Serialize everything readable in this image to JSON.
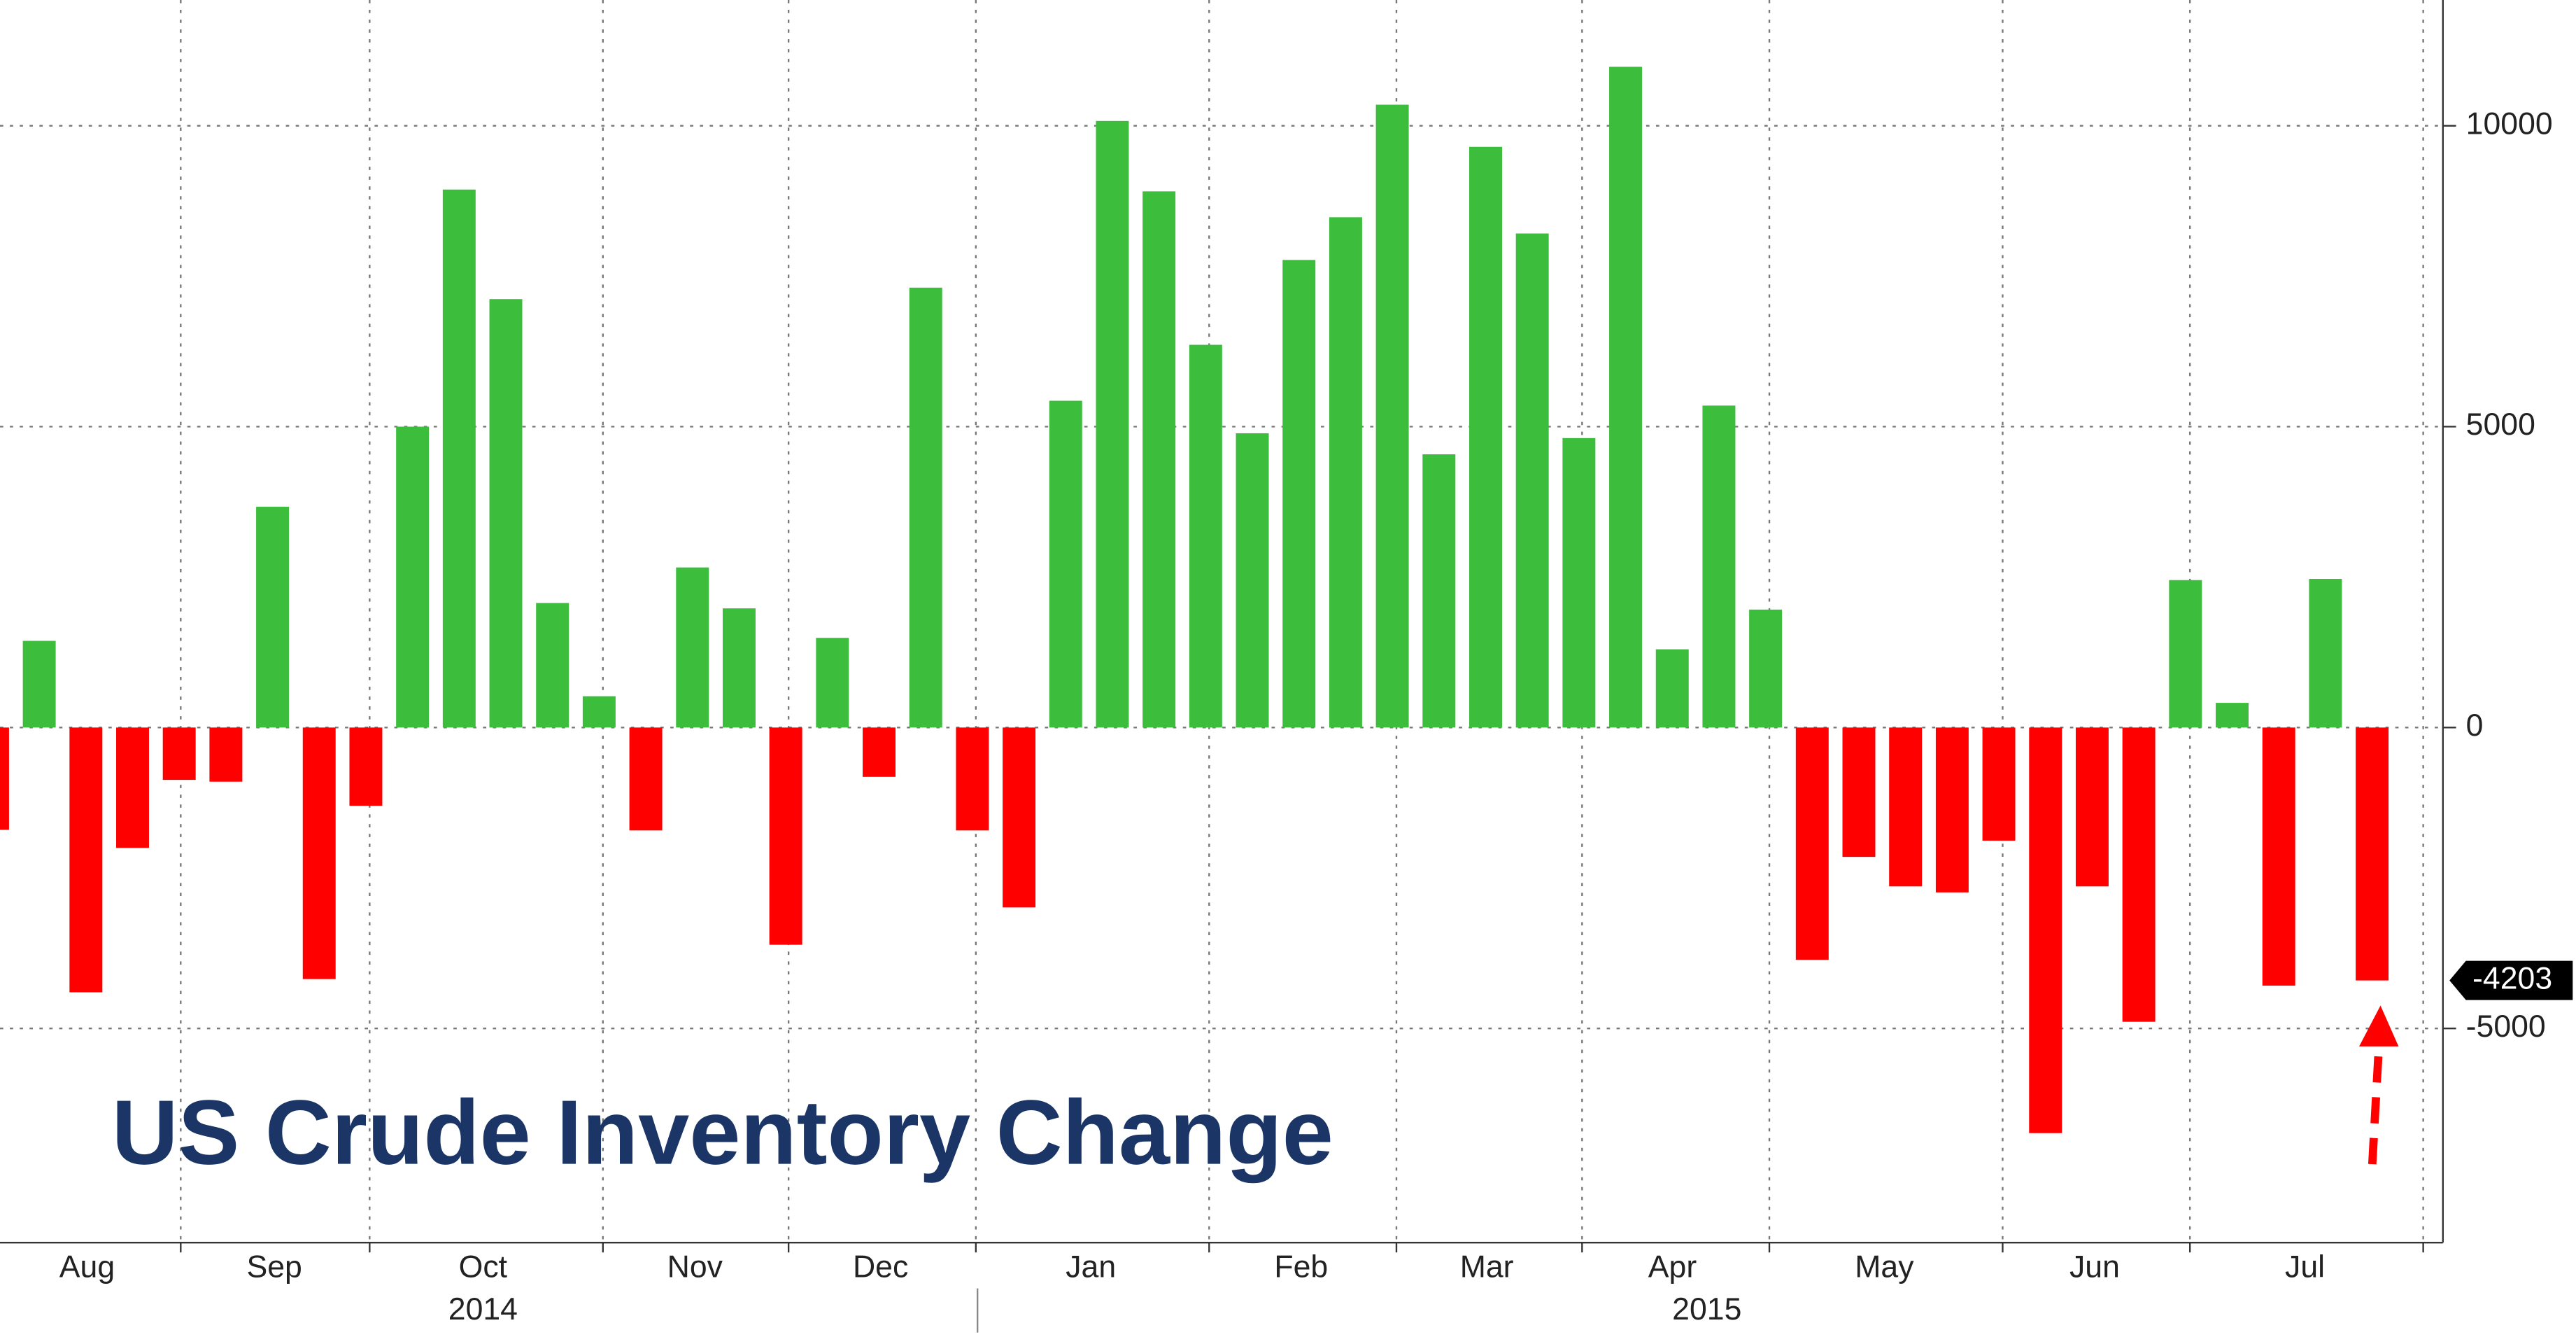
{
  "chart_data": {
    "type": "bar",
    "title": "US Crude Inventory Change",
    "categories": [
      null,
      null,
      null,
      null,
      null,
      null,
      null,
      null,
      null,
      null,
      null,
      null,
      null,
      null,
      null,
      null,
      null,
      null,
      null,
      null,
      null,
      null,
      null,
      null,
      null,
      null,
      null,
      null,
      null,
      null,
      null,
      null,
      null,
      null,
      null,
      null,
      null,
      null,
      null,
      null,
      null,
      null,
      null,
      null,
      null,
      null,
      null,
      null,
      null,
      null,
      null,
      null
    ],
    "values": [
      -1700,
      1440,
      -4400,
      -2000,
      -870,
      -900,
      3670,
      -4180,
      -1300,
      5000,
      8940,
      7120,
      2070,
      520,
      -1710,
      2660,
      1980,
      -3610,
      1490,
      -820,
      7310,
      -1710,
      -2990,
      5430,
      10080,
      8910,
      6360,
      4890,
      7770,
      8480,
      10350,
      4540,
      9650,
      8210,
      4810,
      10980,
      1300,
      5350,
      1960,
      -3860,
      -2150,
      -2640,
      -2740,
      -1880,
      -6740,
      -2640,
      -4890,
      2450,
      410,
      -4290,
      2470,
      -4203
    ],
    "value_labels": {
      "51": "-4203"
    },
    "x_labels": [
      "Aug",
      "Sep",
      "Oct",
      "Nov",
      "Dec",
      "Jan",
      "Feb",
      "Mar",
      "Apr",
      "May",
      "Jun",
      "Jul"
    ],
    "year_labels": [
      "2014",
      "2015"
    ],
    "positive_color": "#3cbd3c",
    "negative_color": "#ff0000",
    "ylim": [
      -8560,
      12090
    ],
    "yticks": [
      -5000,
      0,
      5000,
      10000
    ],
    "grid": true
  }
}
